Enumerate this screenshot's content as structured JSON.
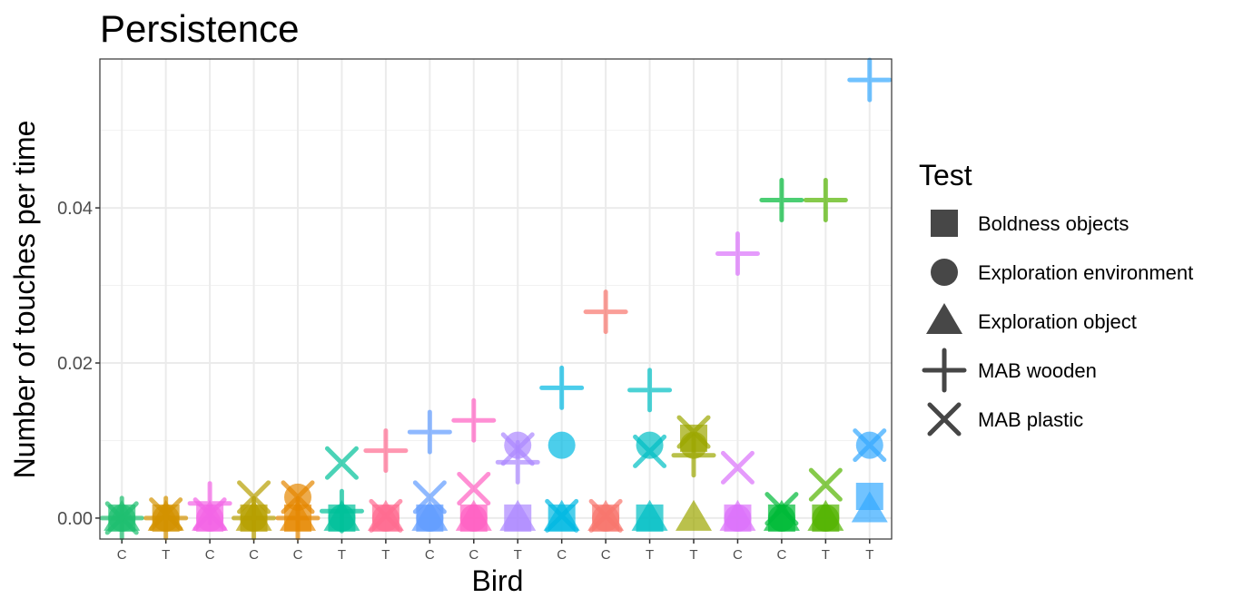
{
  "chart_data": {
    "type": "scatter",
    "title": "Persistence",
    "xlabel": "Bird",
    "ylabel": "Number of touches per time",
    "ylim": [
      -0.0027,
      0.0592
    ],
    "yticks": [
      0,
      0.02,
      0.04
    ],
    "ytick_labels": [
      "0.00",
      "0.02",
      "0.04"
    ],
    "yminor": [
      0.01,
      0.03,
      0.05
    ],
    "grid": true,
    "categories": [
      "C",
      "T",
      "C",
      "C",
      "C",
      "T",
      "T",
      "C",
      "C",
      "T",
      "C",
      "C",
      "T",
      "T",
      "C",
      "C",
      "T",
      "T"
    ],
    "bird_colors": [
      "#1FBF70",
      "#D39200",
      "#F365E6",
      "#B79F00",
      "#E58700",
      "#00C19A",
      "#FF6C91",
      "#619CFF",
      "#FF61C3",
      "#AC88FF",
      "#00B9E3",
      "#F8766D",
      "#00BFC4",
      "#9CA700",
      "#DB72FB",
      "#00BA38",
      "#53B400",
      "#35A9FF"
    ],
    "legend": {
      "title": "Test",
      "position": "right",
      "entries": [
        "Boldness objects",
        "Exploration environment",
        "Exploration object",
        "MAB wooden",
        "MAB plastic"
      ],
      "shapes": [
        "square",
        "circle",
        "triangle",
        "plus",
        "cross"
      ]
    },
    "series": [
      {
        "name": "Boldness objects",
        "shape": "square",
        "values": [
          0,
          0,
          0,
          0,
          0,
          0,
          0,
          0,
          0,
          0,
          0,
          0,
          0,
          0.0103,
          0,
          0,
          0,
          0.0028
        ]
      },
      {
        "name": "Exploration environment",
        "shape": "circle",
        "values": [
          0,
          0,
          0,
          0,
          0.0027,
          0,
          0,
          0,
          0,
          0.0094,
          0.0094,
          0,
          0.0094,
          0.0094,
          0,
          0,
          0,
          0.0094
        ]
      },
      {
        "name": "Exploration object",
        "shape": "triangle",
        "values": [
          0,
          0,
          0,
          0,
          0,
          0,
          0,
          0,
          0,
          0,
          0,
          0,
          0,
          0,
          0,
          0,
          0,
          0.0011
        ]
      },
      {
        "name": "MAB wooden",
        "shape": "plus",
        "values": [
          0,
          0,
          0.0019,
          0,
          0,
          0.0009,
          0.0087,
          0.0111,
          0.0126,
          0.0072,
          0.0168,
          0.0266,
          0.0165,
          0.0081,
          0.0341,
          0.041,
          0.041,
          0.0565
        ]
      },
      {
        "name": "MAB plastic",
        "shape": "cross",
        "values": [
          0,
          0.0005,
          0.0005,
          0.0027,
          0.0027,
          0.0071,
          0.0003,
          0.0027,
          0.0038,
          0.0089,
          0.0003,
          0.0003,
          0.0086,
          0.0111,
          0.0065,
          0.0012,
          0.0043,
          0.0094
        ]
      }
    ]
  }
}
